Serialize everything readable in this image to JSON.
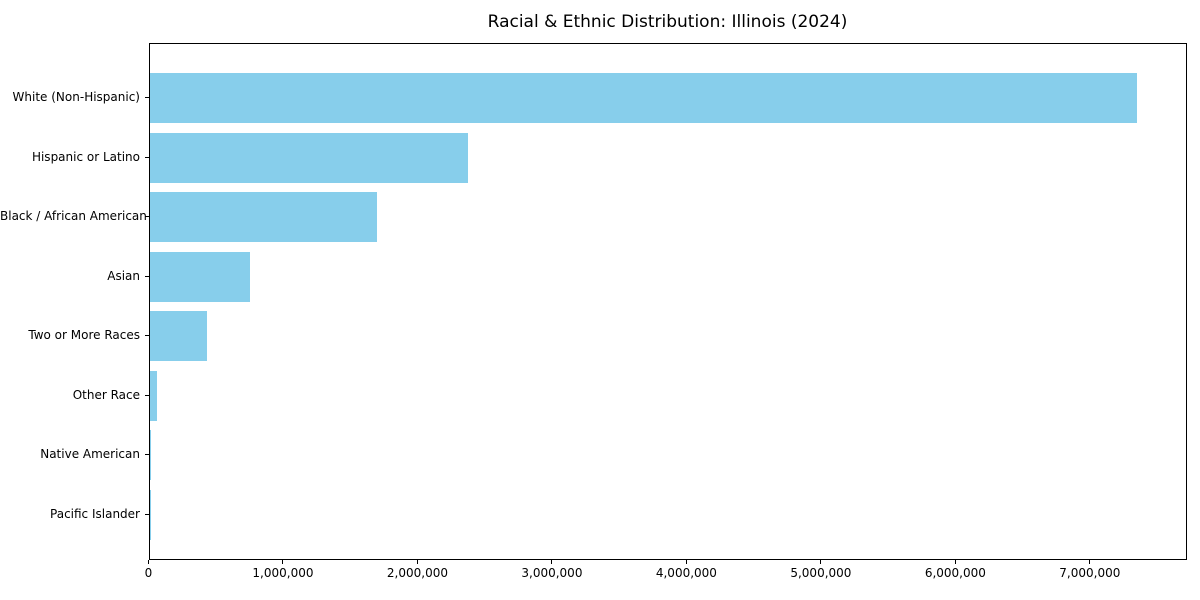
{
  "title": "Racial & Ethnic Distribution: Illinois (2024)",
  "chart_data": {
    "type": "bar",
    "orientation": "horizontal",
    "title": "Racial & Ethnic Distribution: Illinois (2024)",
    "xlabel": "",
    "ylabel": "",
    "categories": [
      "White (Non-Hispanic)",
      "Hispanic or Latino",
      "Black / African American",
      "Asian",
      "Two or More Races",
      "Other Race",
      "Native American",
      "Pacific Islander"
    ],
    "values": [
      7340000,
      2370000,
      1690000,
      750000,
      430000,
      55000,
      10000,
      3000
    ],
    "bar_color": "#87CEEB",
    "xlim": [
      0,
      7715000
    ],
    "x_ticks": [
      0,
      1000000,
      2000000,
      3000000,
      4000000,
      5000000,
      6000000,
      7000000
    ],
    "x_tick_labels": [
      "0",
      "1,000,000",
      "2,000,000",
      "3,000,000",
      "4,000,000",
      "5,000,000",
      "6,000,000",
      "7,000,000"
    ],
    "grid": false,
    "legend": null,
    "frame_color": "#000000",
    "text_color": "#000000",
    "background_color": "#ffffff"
  }
}
